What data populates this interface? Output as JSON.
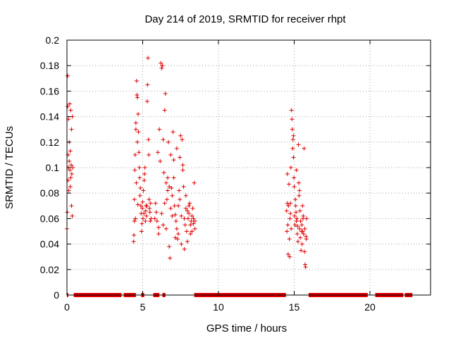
{
  "chart_data": {
    "type": "scatter",
    "title": "Day 214 of 2019, SRMTID for receiver rhpt",
    "xlabel": "GPS time / hours",
    "ylabel": "SRMTID / TECUs",
    "xlim": [
      0,
      24
    ],
    "ylim": [
      0,
      0.2
    ],
    "xticks": [
      0,
      5,
      10,
      15,
      20
    ],
    "xtick_labels": [
      "0",
      "5",
      "10",
      "15",
      "20"
    ],
    "yticks": [
      0,
      0.02,
      0.04,
      0.06,
      0.08,
      0.1,
      0.12,
      0.14,
      0.16,
      0.18,
      0.2
    ],
    "ytick_labels": [
      "0",
      "0.02",
      "0.04",
      "0.06",
      "0.08",
      "0.1",
      "0.12",
      "0.14",
      "0.16",
      "0.18",
      "0.2"
    ],
    "grid": true,
    "marker": "+",
    "color": "#e00000",
    "series": [
      {
        "name": "SRMTID",
        "points": [
          [
            0.0,
            0.052
          ],
          [
            0.02,
            0.065
          ],
          [
            0.05,
            0.172
          ],
          [
            0.05,
            0.148
          ],
          [
            0.08,
            0.11
          ],
          [
            0.08,
            0.09
          ],
          [
            0.1,
            0.138
          ],
          [
            0.1,
            0.1
          ],
          [
            0.12,
            0.082
          ],
          [
            0.15,
            0.105
          ],
          [
            0.15,
            0.12
          ],
          [
            0.18,
            0.15
          ],
          [
            0.2,
            0.098
          ],
          [
            0.22,
            0.113
          ],
          [
            0.22,
            0.085
          ],
          [
            0.25,
            0.145
          ],
          [
            0.25,
            0.092
          ],
          [
            0.28,
            0.102
          ],
          [
            0.3,
            0.13
          ],
          [
            0.3,
            0.07
          ],
          [
            0.32,
            0.095
          ],
          [
            0.35,
            0.062
          ],
          [
            0.35,
            0.14
          ],
          [
            0.38,
            0.1
          ],
          [
            4.4,
            0.042
          ],
          [
            4.42,
            0.047
          ],
          [
            4.45,
            0.058
          ],
          [
            4.45,
            0.075
          ],
          [
            4.48,
            0.098
          ],
          [
            4.5,
            0.11
          ],
          [
            4.52,
            0.06
          ],
          [
            4.55,
            0.13
          ],
          [
            4.55,
            0.135
          ],
          [
            4.58,
            0.088
          ],
          [
            4.6,
            0.168
          ],
          [
            4.62,
            0.157
          ],
          [
            4.65,
            0.155
          ],
          [
            4.65,
            0.12
          ],
          [
            4.68,
            0.071
          ],
          [
            4.7,
            0.142
          ],
          [
            4.72,
            0.128
          ],
          [
            4.75,
            0.112
          ],
          [
            4.78,
            0.1
          ],
          [
            4.8,
            0.092
          ],
          [
            4.82,
            0.078
          ],
          [
            4.85,
            0.084
          ],
          [
            4.88,
            0.07
          ],
          [
            4.9,
            0.064
          ],
          [
            4.92,
            0.05
          ],
          [
            4.95,
            0.056
          ],
          [
            4.98,
            0.068
          ],
          [
            5.0,
            0.073
          ],
          [
            5.02,
            0.06
          ],
          [
            5.05,
            0.082
          ],
          [
            5.08,
            0.064
          ],
          [
            5.1,
            0.09
          ],
          [
            5.12,
            0.095
          ],
          [
            5.15,
            0.1
          ],
          [
            5.18,
            0.058
          ],
          [
            5.2,
            0.066
          ],
          [
            5.22,
            0.07
          ],
          [
            5.25,
            0.062
          ],
          [
            5.28,
            0.07
          ],
          [
            5.3,
            0.152
          ],
          [
            5.32,
            0.165
          ],
          [
            5.35,
            0.186
          ],
          [
            5.38,
            0.122
          ],
          [
            5.4,
            0.11
          ],
          [
            5.42,
            0.075
          ],
          [
            5.45,
            0.068
          ],
          [
            5.48,
            0.065
          ],
          [
            5.5,
            0.058
          ],
          [
            5.52,
            0.072
          ],
          [
            5.55,
            0.06
          ],
          [
            5.8,
            0.06
          ],
          [
            5.85,
            0.072
          ],
          [
            5.9,
            0.065
          ],
          [
            5.95,
            0.058
          ],
          [
            6.0,
            0.112
          ],
          [
            6.05,
            0.053
          ],
          [
            6.1,
            0.13
          ],
          [
            6.15,
            0.105
          ],
          [
            6.2,
            0.182
          ],
          [
            6.25,
            0.178
          ],
          [
            6.3,
            0.18
          ],
          [
            6.35,
            0.122
          ],
          [
            6.4,
            0.096
          ],
          [
            6.45,
            0.145
          ],
          [
            6.5,
            0.158
          ],
          [
            6.55,
            0.088
          ],
          [
            6.6,
            0.075
          ],
          [
            6.65,
            0.092
          ],
          [
            6.7,
            0.12
          ],
          [
            6.75,
            0.038
          ],
          [
            6.8,
            0.029
          ],
          [
            6.85,
            0.068
          ],
          [
            6.9,
            0.084
          ],
          [
            6.95,
            0.078
          ],
          [
            7.0,
            0.128
          ],
          [
            7.05,
            0.106
          ],
          [
            7.1,
            0.07
          ],
          [
            7.15,
            0.063
          ],
          [
            7.2,
            0.058
          ],
          [
            7.25,
            0.052
          ],
          [
            7.3,
            0.044
          ],
          [
            7.35,
            0.048
          ],
          [
            7.4,
            0.082
          ],
          [
            7.45,
            0.075
          ],
          [
            7.5,
            0.125
          ],
          [
            7.55,
            0.062
          ],
          [
            7.6,
            0.122
          ],
          [
            7.65,
            0.098
          ],
          [
            7.7,
            0.085
          ],
          [
            7.75,
            0.06
          ],
          [
            7.8,
            0.055
          ],
          [
            7.85,
            0.078
          ],
          [
            7.9,
            0.05
          ],
          [
            7.95,
            0.066
          ],
          [
            8.0,
            0.06
          ],
          [
            8.05,
            0.064
          ],
          [
            8.1,
            0.072
          ],
          [
            8.15,
            0.055
          ],
          [
            8.2,
            0.058
          ],
          [
            8.25,
            0.05
          ],
          [
            8.3,
            0.068
          ],
          [
            8.35,
            0.06
          ],
          [
            8.4,
            0.088
          ],
          [
            8.45,
            0.052
          ],
          [
            6.35,
            0.055
          ],
          [
            6.55,
            0.052
          ],
          [
            6.75,
            0.085
          ],
          [
            6.95,
            0.062
          ],
          [
            7.15,
            0.045
          ],
          [
            7.35,
            0.07
          ],
          [
            7.55,
            0.04
          ],
          [
            7.75,
            0.036
          ],
          [
            7.95,
            0.042
          ],
          [
            8.15,
            0.048
          ],
          [
            8.35,
            0.056
          ],
          [
            6.05,
            0.048
          ],
          [
            6.25,
            0.064
          ],
          [
            6.45,
            0.072
          ],
          [
            6.65,
            0.082
          ],
          [
            6.85,
            0.11
          ],
          [
            7.05,
            0.092
          ],
          [
            7.25,
            0.115
          ],
          [
            7.45,
            0.108
          ],
          [
            7.65,
            0.102
          ],
          [
            7.85,
            0.068
          ],
          [
            8.05,
            0.07
          ],
          [
            8.25,
            0.062
          ],
          [
            8.45,
            0.058
          ],
          [
            14.5,
            0.066
          ],
          [
            14.52,
            0.05
          ],
          [
            14.55,
            0.095
          ],
          [
            14.58,
            0.055
          ],
          [
            14.6,
            0.032
          ],
          [
            14.62,
            0.07
          ],
          [
            14.65,
            0.087
          ],
          [
            14.68,
            0.044
          ],
          [
            14.7,
            0.03
          ],
          [
            14.72,
            0.06
          ],
          [
            14.75,
            0.072
          ],
          [
            14.78,
            0.1
          ],
          [
            14.8,
            0.052
          ],
          [
            14.82,
            0.145
          ],
          [
            14.85,
            0.138
          ],
          [
            14.88,
            0.13
          ],
          [
            14.9,
            0.115
          ],
          [
            14.92,
            0.122
          ],
          [
            14.95,
            0.108
          ],
          [
            14.98,
            0.092
          ],
          [
            15.0,
            0.085
          ],
          [
            15.02,
            0.062
          ],
          [
            15.05,
            0.055
          ],
          [
            15.08,
            0.075
          ],
          [
            15.1,
            0.07
          ],
          [
            15.12,
            0.065
          ],
          [
            15.15,
            0.098
          ],
          [
            15.18,
            0.06
          ],
          [
            15.2,
            0.048
          ],
          [
            15.22,
            0.054
          ],
          [
            15.25,
            0.042
          ],
          [
            15.28,
            0.118
          ],
          [
            15.3,
            0.088
          ],
          [
            15.32,
            0.078
          ],
          [
            15.35,
            0.052
          ],
          [
            15.38,
            0.066
          ],
          [
            15.4,
            0.045
          ],
          [
            15.42,
            0.058
          ],
          [
            15.45,
            0.035
          ],
          [
            15.48,
            0.05
          ],
          [
            15.5,
            0.055
          ],
          [
            15.52,
            0.04
          ],
          [
            15.55,
            0.07
          ],
          [
            15.58,
            0.06
          ],
          [
            15.6,
            0.062
          ],
          [
            15.62,
            0.048
          ],
          [
            15.65,
            0.115
          ],
          [
            15.68,
            0.034
          ],
          [
            15.7,
            0.052
          ],
          [
            15.72,
            0.024
          ],
          [
            15.75,
            0.022
          ],
          [
            15.78,
            0.046
          ],
          [
            15.8,
            0.044
          ],
          [
            15.82,
            0.06
          ],
          [
            14.55,
            0.072
          ],
          [
            14.75,
            0.064
          ],
          [
            14.95,
            0.125
          ],
          [
            15.15,
            0.058
          ],
          [
            15.35,
            0.082
          ],
          [
            15.55,
            0.05
          ]
        ]
      }
    ],
    "zero_segments": [
      [
        0.0,
        0.08
      ],
      [
        0.45,
        3.6
      ],
      [
        3.75,
        4.55
      ],
      [
        4.9,
        5.1
      ],
      [
        5.7,
        6.1
      ],
      [
        6.3,
        6.5
      ],
      [
        8.4,
        14.45
      ],
      [
        15.95,
        19.85
      ],
      [
        20.35,
        22.2
      ],
      [
        22.3,
        22.8
      ]
    ]
  }
}
